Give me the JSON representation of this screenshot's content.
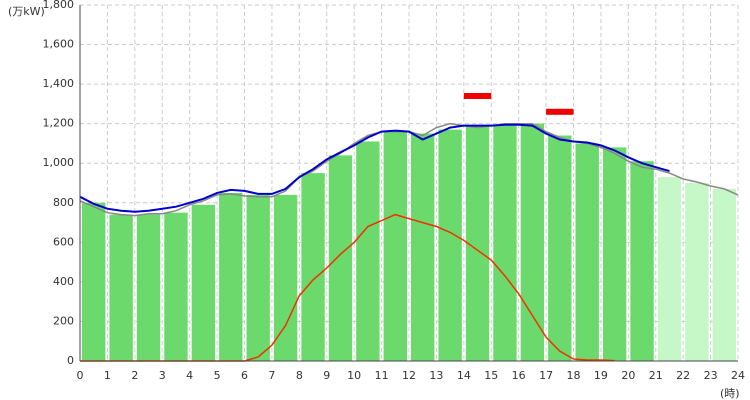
{
  "chart_data": {
    "type": "combo",
    "y_unit_label": "(万kW)",
    "x_unit_label": "(時)",
    "xlim": [
      0,
      24
    ],
    "xticks": [
      0,
      1,
      2,
      3,
      4,
      5,
      6,
      7,
      8,
      9,
      10,
      11,
      12,
      13,
      14,
      15,
      16,
      17,
      18,
      19,
      20,
      21,
      22,
      23,
      24
    ],
    "ylim": [
      0,
      1800
    ],
    "yticks": [
      0,
      200,
      400,
      600,
      800,
      {
        "value": 1000,
        "label": "1,000"
      },
      {
        "value": 1200,
        "label": "1,200"
      },
      {
        "value": 1400,
        "label": "1,400"
      },
      {
        "value": 1600,
        "label": "1,600"
      },
      {
        "value": 1800,
        "label": "1,800"
      }
    ],
    "grid": true,
    "bars": {
      "hours": [
        0,
        1,
        2,
        3,
        4,
        5,
        6,
        7,
        8,
        9,
        10,
        11,
        12,
        13,
        14,
        15,
        16,
        17,
        18,
        19,
        20,
        21,
        22,
        23
      ],
      "values": [
        800,
        740,
        740,
        750,
        790,
        850,
        840,
        840,
        950,
        1040,
        1110,
        1160,
        1150,
        1170,
        1190,
        1190,
        1200,
        1140,
        1100,
        1080,
        1010,
        930,
        900,
        870
      ],
      "colors": [
        "#6cd96c",
        "#6cd96c",
        "#6cd96c",
        "#6cd96c",
        "#6cd96c",
        "#6cd96c",
        "#6cd96c",
        "#6cd96c",
        "#6cd96c",
        "#6cd96c",
        "#6cd96c",
        "#6cd96c",
        "#6cd96c",
        "#6cd96c",
        "#6cd96c",
        "#6cd96c",
        "#6cd96c",
        "#6cd96c",
        "#6cd96c",
        "#6cd96c",
        "#6cd96c",
        "#c6f7c6",
        "#c6f7c6",
        "#c6f7c6"
      ]
    },
    "x": [
      0,
      0.5,
      1,
      1.5,
      2,
      2.5,
      3,
      3.5,
      4,
      4.5,
      5,
      5.5,
      6,
      6.5,
      7,
      7.5,
      8,
      8.5,
      9,
      9.5,
      10,
      10.5,
      11,
      11.5,
      12,
      12.5,
      13,
      13.5,
      14,
      14.5,
      15,
      15.5,
      16,
      16.5,
      17,
      17.5,
      18,
      18.5,
      19,
      19.5,
      20,
      20.5,
      21,
      21.5,
      22,
      22.5,
      23,
      23.5,
      24
    ],
    "series": [
      {
        "color": "#888888",
        "values": [
          810,
          780,
          750,
          740,
          735,
          745,
          745,
          760,
          790,
          810,
          840,
          845,
          835,
          830,
          830,
          860,
          930,
          960,
          1010,
          1050,
          1100,
          1140,
          1160,
          1160,
          1160,
          1140,
          1180,
          1200,
          1190,
          1180,
          1190,
          1200,
          1200,
          1200,
          1160,
          1130,
          1110,
          1100,
          1080,
          1050,
          1010,
          980,
          970,
          950,
          920,
          905,
          885,
          870,
          840
        ]
      },
      {
        "color": "#0000cc",
        "values": [
          830,
          795,
          770,
          760,
          755,
          760,
          770,
          780,
          800,
          820,
          850,
          865,
          860,
          845,
          845,
          870,
          930,
          970,
          1020,
          1055,
          1090,
          1130,
          1160,
          1165,
          1160,
          1120,
          1150,
          1180,
          1190,
          1190,
          1190,
          1195,
          1195,
          1190,
          1150,
          1120,
          1110,
          1105,
          1090,
          1065,
          1030,
          1000,
          980,
          960,
          null,
          null,
          null,
          null,
          null
        ]
      },
      {
        "color": "#ee3300",
        "values": [
          0,
          0,
          0,
          0,
          0,
          0,
          0,
          0,
          0,
          0,
          0,
          0,
          0,
          20,
          80,
          180,
          330,
          410,
          470,
          540,
          600,
          680,
          710,
          740,
          720,
          700,
          680,
          650,
          610,
          560,
          510,
          430,
          340,
          230,
          120,
          50,
          10,
          5,
          5,
          2,
          null,
          null,
          null,
          null,
          null,
          null,
          null,
          null,
          null
        ]
      }
    ],
    "markers": [
      {
        "start": 14,
        "end": 15,
        "value": 1340,
        "color": "#ee0000"
      },
      {
        "start": 17,
        "end": 18,
        "value": 1260,
        "color": "#ee0000"
      }
    ]
  }
}
